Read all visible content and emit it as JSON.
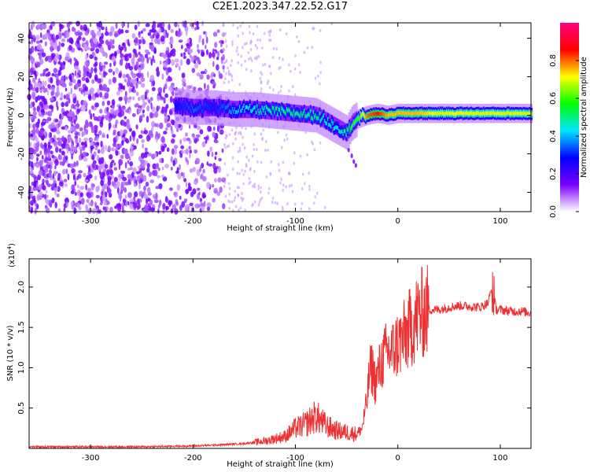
{
  "title": "C2E1.2023.347.22.52.G17",
  "chart_data": [
    {
      "type": "heatmap",
      "xlabel": "Height of straight line (km)",
      "ylabel": "Frequency (Hz)",
      "xlim": [
        -360,
        130
      ],
      "ylim": [
        -50,
        48
      ],
      "xticks": [
        -300,
        -200,
        -100,
        0,
        100
      ],
      "yticks": [
        -40,
        -20,
        0,
        20,
        40
      ],
      "colorbar": {
        "label": "Normalized spectral amplitude",
        "range": [
          0.0,
          1.0
        ],
        "ticks": [
          0.0,
          0.2,
          0.4,
          0.6,
          0.8
        ],
        "colormap": [
          "#ffffff",
          "#7a00ff",
          "#0000ff",
          "#00e5ff",
          "#00ff00",
          "#ffff00",
          "#ff0000",
          "#ff0080"
        ]
      },
      "ridge": {
        "x": [
          -215,
          -200,
          -180,
          -160,
          -140,
          -120,
          -100,
          -80,
          -70,
          -60,
          -50,
          -45,
          -40,
          -30,
          -20,
          -10,
          0,
          20,
          40,
          60,
          80,
          100,
          120,
          130
        ],
        "y": [
          5,
          4,
          4,
          3,
          3,
          2,
          1,
          0,
          -3,
          -6,
          -9,
          -4,
          -2,
          0,
          1,
          0,
          1,
          1,
          1,
          1,
          1,
          1,
          1,
          1
        ],
        "peak_amplitude": [
          0.3,
          0.35,
          0.3,
          0.4,
          0.45,
          0.5,
          0.5,
          0.5,
          0.45,
          0.45,
          0.5,
          0.6,
          0.6,
          0.8,
          0.85,
          0.75,
          0.75,
          0.75,
          0.7,
          0.72,
          0.7,
          0.7,
          0.7,
          0.7
        ]
      }
    },
    {
      "type": "line",
      "xlabel": "Height of straight line (km)",
      "ylabel": "SNR (10 * v/v)",
      "y_multiplier": "(x10",
      "y_exponent": "4",
      "y_multiplier_close": ")",
      "xlim": [
        -360,
        130
      ],
      "ylim": [
        0,
        2.35
      ],
      "xticks": [
        -300,
        -200,
        -100,
        0,
        100
      ],
      "yticks": [
        0.5,
        1.0,
        1.5,
        2.0
      ],
      "ytick_labels": [
        "0.5",
        "1.0",
        "1.5",
        "2.0"
      ],
      "series": [
        {
          "color": "#ee3030",
          "x": [
            -360,
            -300,
            -250,
            -200,
            -180,
            -150,
            -130,
            -110,
            -100,
            -90,
            -80,
            -70,
            -60,
            -50,
            -40,
            -35,
            -30,
            -28,
            -26,
            -24,
            -22,
            -20,
            -15,
            -10,
            -5,
            0,
            5,
            10,
            15,
            20,
            30,
            40,
            50,
            60,
            70,
            80,
            88,
            92,
            96,
            100,
            110,
            120,
            130
          ],
          "y": [
            0.02,
            0.02,
            0.02,
            0.03,
            0.04,
            0.06,
            0.09,
            0.15,
            0.25,
            0.3,
            0.4,
            0.28,
            0.22,
            0.2,
            0.18,
            0.25,
            0.6,
            0.9,
            1.0,
            0.95,
            0.8,
            0.9,
            1.1,
            1.2,
            1.2,
            1.3,
            1.35,
            1.45,
            1.55,
            1.65,
            1.72,
            1.72,
            1.75,
            1.77,
            1.76,
            1.75,
            1.8,
            2.0,
            1.72,
            1.72,
            1.7,
            1.7,
            1.68
          ]
        }
      ]
    }
  ]
}
